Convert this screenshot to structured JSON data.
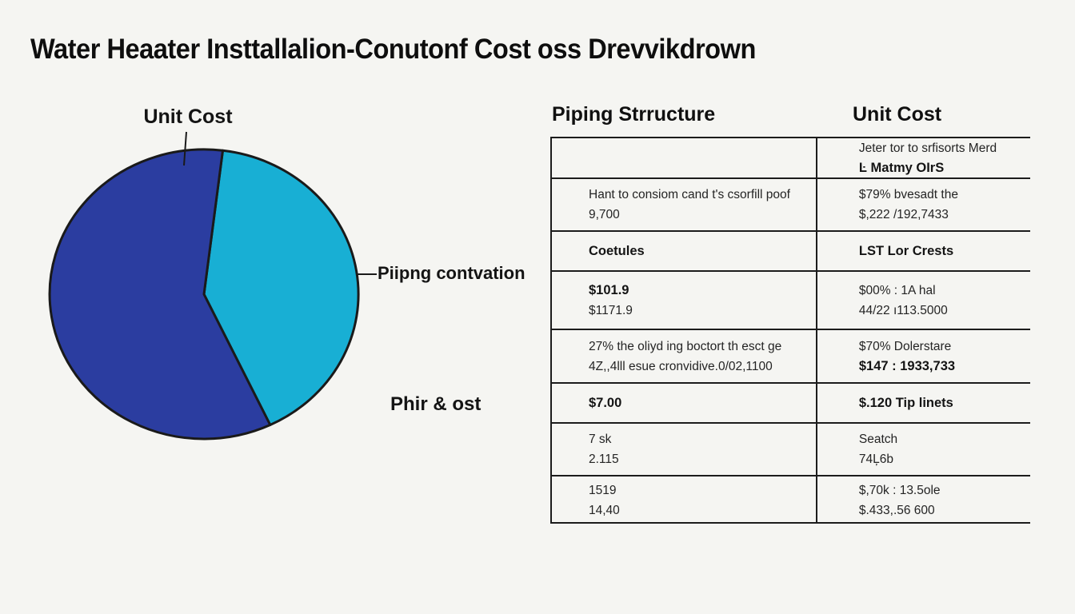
{
  "title": "Water Heaater Insttallalion-Conutonf Cost oss Drevvikdrown",
  "pie_labels": {
    "top": "Unit Cost",
    "right": "Piipng contvation",
    "bottom": "Phir & ost"
  },
  "chart_data": {
    "type": "pie",
    "title": "Water Heaater Insttallalion-Conutonf Cost oss Drevvikdrown",
    "segments": [
      {
        "label": "Piipng contvation",
        "value": 41,
        "color": "#18afd4"
      },
      {
        "label": "Unit Cost",
        "value": 59,
        "color": "#2b3da0"
      }
    ],
    "start_angle_deg": 7,
    "outline_color": "#1a1a1a",
    "legend_position": "none",
    "annotations": [
      "Unit Cost",
      "Piipng contvation",
      "Phir & ost"
    ]
  },
  "table": {
    "col1_header": "Piping Strructure",
    "col2_header": "Unit Cost",
    "rows": [
      {
        "right1": "Jeter tor to srfisorts Merd",
        "right2": "Ŀ Matmy OIrS"
      },
      {
        "left1": "Hant to consiom cand t's csorfill poof",
        "left2": "9,700",
        "right1": "$79% bvesadt the",
        "right2": "$,222 /192,7433"
      },
      {
        "left1": "Coetules",
        "right1": "LST Lor Crests"
      },
      {
        "left1": "$101.9",
        "left2": "$1171.9",
        "right1": "$00% : 1A hal",
        "right2": "44/22 ı113.5000"
      },
      {
        "left1": "27% the oliyd ing boctort th esct ge",
        "left2": "4Z,,4lll esue cronvidive.0/02,1100",
        "right1": "$70% Dolerstare",
        "right2": "$147 : 1933,733"
      },
      {
        "left1": "$7.00",
        "right1": "$.120 Tip linets"
      },
      {
        "left1": "7 sk",
        "left2": "2.115",
        "right1": "Seatch",
        "right2": "74Ļ6b"
      },
      {
        "left1": "1519",
        "left2": "14,40",
        "right1": "$,70k : 13.5ole",
        "right2": "$.433,.56 600"
      }
    ]
  }
}
